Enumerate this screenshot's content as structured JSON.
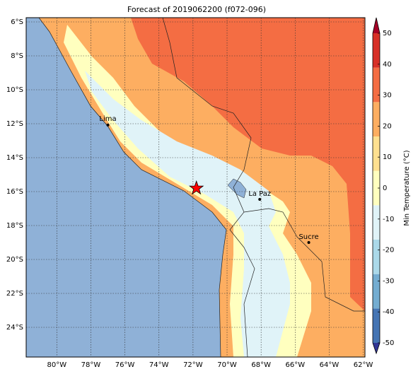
{
  "chart_data": {
    "type": "map",
    "title": "Forecast of 2019062200 (f072-096)",
    "xlim": [
      -81.8,
      -61.9
    ],
    "ylim": [
      -25.75,
      -5.75
    ],
    "xticks": [
      {
        "value": -80,
        "label": "80°W"
      },
      {
        "value": -78,
        "label": "78°W"
      },
      {
        "value": -76,
        "label": "76°W"
      },
      {
        "value": -74,
        "label": "74°W"
      },
      {
        "value": -72,
        "label": "72°W"
      },
      {
        "value": -70,
        "label": "70°W"
      },
      {
        "value": -68,
        "label": "68°W"
      },
      {
        "value": -66,
        "label": "66°W"
      },
      {
        "value": -64,
        "label": "64°W"
      },
      {
        "value": -62,
        "label": "62°W"
      }
    ],
    "yticks": [
      {
        "value": -6,
        "label": "6°S"
      },
      {
        "value": -8,
        "label": "8°S"
      },
      {
        "value": -10,
        "label": "10°S"
      },
      {
        "value": -12,
        "label": "12°S"
      },
      {
        "value": -14,
        "label": "14°S"
      },
      {
        "value": -16,
        "label": "16°S"
      },
      {
        "value": -18,
        "label": "18°S"
      },
      {
        "value": -20,
        "label": "20°S"
      },
      {
        "value": -22,
        "label": "22°S"
      },
      {
        "value": -24,
        "label": "24°S"
      }
    ],
    "grid": true,
    "cities": [
      {
        "name": "Lima",
        "lon": -77.0,
        "lat": -12.08
      },
      {
        "name": "La Paz",
        "lon": -68.08,
        "lat": -16.46
      },
      {
        "name": "Sucre",
        "lon": -65.2,
        "lat": -19.0
      }
    ],
    "marker": {
      "lon": -71.8,
      "lat": -15.8,
      "color": "#ff0000"
    },
    "colorbar": {
      "label": "Min Temperature (°C)",
      "clim": [
        -50,
        50
      ],
      "ticks": [
        50,
        40,
        30,
        20,
        10,
        0,
        -10,
        -20,
        -30,
        -40,
        -50
      ],
      "colors": [
        "#313695",
        "#4575b4",
        "#74add1",
        "#abd9e9",
        "#e0f3f8",
        "#ffffbf",
        "#fee090",
        "#fdae61",
        "#f46d43",
        "#d73027",
        "#a50026"
      ]
    }
  }
}
